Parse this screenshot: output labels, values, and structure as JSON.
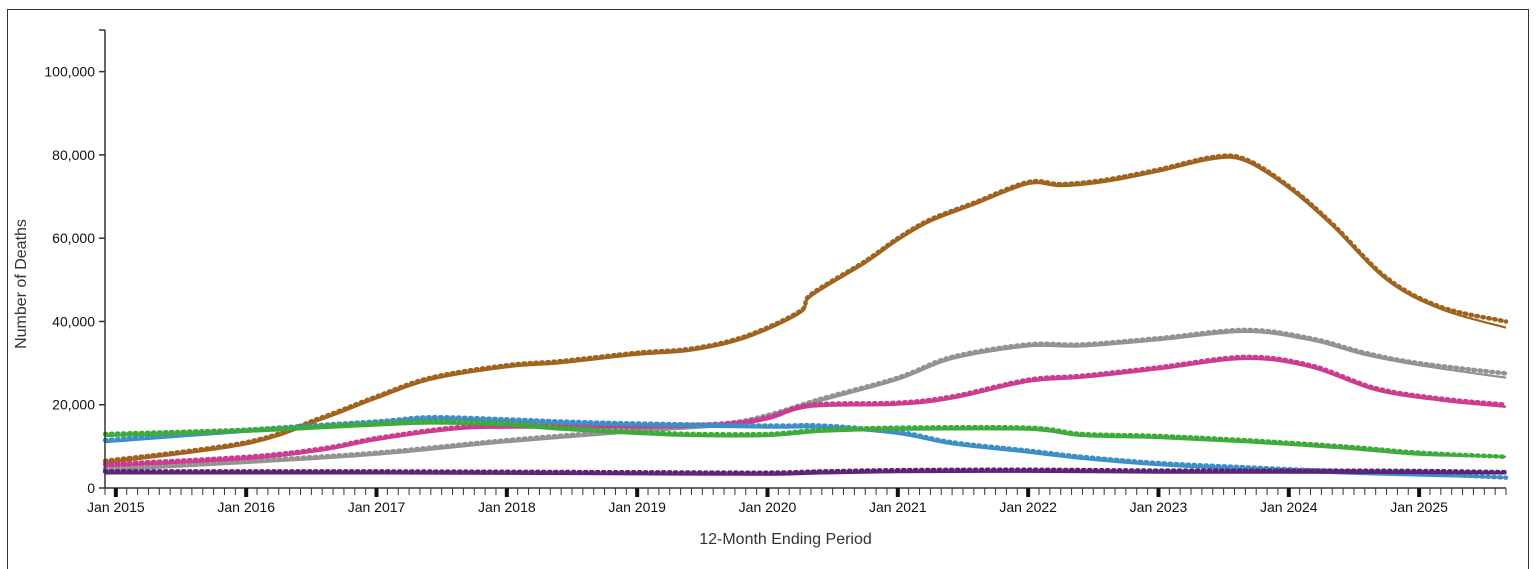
{
  "chart_data": {
    "type": "line",
    "xlabel": "12-Month Ending Period",
    "ylabel": "Number of Deaths",
    "ylim": [
      0,
      110000
    ],
    "yticks": [
      0,
      20000,
      40000,
      60000,
      80000,
      100000
    ],
    "ytick_labels": [
      "0",
      "20,000",
      "40,000",
      "60,000",
      "80,000",
      "100,000"
    ],
    "x_start": "2014-12",
    "x_end": "2025-09",
    "xtick_labels": [
      "Jan 2015",
      "Jan 2016",
      "Jan 2017",
      "Jan 2018",
      "Jan 2019",
      "Jan 2020",
      "Jan 2021",
      "Jan 2022",
      "Jan 2023",
      "Jan 2024",
      "Jan 2025"
    ],
    "grid": false,
    "legend": "none",
    "series": [
      {
        "color": "#a0631e",
        "style": "solid-with-dotted-overlay",
        "points": [
          [
            "2014-12",
            6000
          ],
          [
            "2016-01",
            10500
          ],
          [
            "2016-08",
            16500
          ],
          [
            "2017-01",
            21500
          ],
          [
            "2017-06",
            26000
          ],
          [
            "2018-01",
            29000
          ],
          [
            "2018-06",
            30000
          ],
          [
            "2019-01",
            32000
          ],
          [
            "2019-06",
            33000
          ],
          [
            "2019-11",
            36000
          ],
          [
            "2020-04",
            42000
          ],
          [
            "2020-05",
            46000
          ],
          [
            "2020-10",
            54000
          ],
          [
            "2021-01",
            59500
          ],
          [
            "2021-04",
            64000
          ],
          [
            "2021-08",
            68000
          ],
          [
            "2022-01",
            73000
          ],
          [
            "2022-04",
            72500
          ],
          [
            "2022-08",
            73500
          ],
          [
            "2023-01",
            76000
          ],
          [
            "2023-06",
            79000
          ],
          [
            "2023-09",
            78500
          ],
          [
            "2024-01",
            72000
          ],
          [
            "2024-05",
            63000
          ],
          [
            "2024-10",
            50000
          ],
          [
            "2025-03",
            43000
          ],
          [
            "2025-09",
            38500
          ]
        ],
        "dotted_end": 40000
      },
      {
        "color": "#929292",
        "style": "solid-with-dotted-overlay",
        "points": [
          [
            "2014-12",
            4200
          ],
          [
            "2016-01",
            6000
          ],
          [
            "2017-01",
            8000
          ],
          [
            "2018-01",
            11000
          ],
          [
            "2019-01",
            13500
          ],
          [
            "2019-09",
            15000
          ],
          [
            "2020-01",
            17000
          ],
          [
            "2020-06",
            21000
          ],
          [
            "2021-01",
            26000
          ],
          [
            "2021-06",
            31000
          ],
          [
            "2022-01",
            34000
          ],
          [
            "2022-06",
            34000
          ],
          [
            "2023-01",
            35500
          ],
          [
            "2023-09",
            37500
          ],
          [
            "2024-03",
            35500
          ],
          [
            "2024-08",
            32000
          ],
          [
            "2025-01",
            29500
          ],
          [
            "2025-09",
            26500
          ]
        ],
        "dotted_end": 27500
      },
      {
        "color": "#cc3a91",
        "style": "solid-with-dotted-overlay",
        "points": [
          [
            "2014-12",
            5200
          ],
          [
            "2016-01",
            7000
          ],
          [
            "2016-08",
            9000
          ],
          [
            "2017-01",
            11500
          ],
          [
            "2017-08",
            14000
          ],
          [
            "2018-01",
            14500
          ],
          [
            "2019-01",
            14500
          ],
          [
            "2019-09",
            15000
          ],
          [
            "2020-01",
            16500
          ],
          [
            "2020-05",
            19500
          ],
          [
            "2021-01",
            20000
          ],
          [
            "2021-06",
            21500
          ],
          [
            "2022-01",
            25500
          ],
          [
            "2022-06",
            26500
          ],
          [
            "2023-01",
            28500
          ],
          [
            "2023-09",
            31000
          ],
          [
            "2024-03",
            29000
          ],
          [
            "2024-09",
            23500
          ],
          [
            "2025-03",
            21000
          ],
          [
            "2025-09",
            19500
          ]
        ],
        "dotted_end": 20000
      },
      {
        "color": "#3d8ec7",
        "style": "solid-with-dotted-overlay",
        "points": [
          [
            "2014-12",
            11000
          ],
          [
            "2016-01",
            13500
          ],
          [
            "2017-01",
            15500
          ],
          [
            "2017-06",
            16500
          ],
          [
            "2018-01",
            16000
          ],
          [
            "2018-06",
            15500
          ],
          [
            "2019-01",
            15000
          ],
          [
            "2020-01",
            14500
          ],
          [
            "2020-06",
            14500
          ],
          [
            "2021-01",
            13000
          ],
          [
            "2021-06",
            10500
          ],
          [
            "2022-01",
            8500
          ],
          [
            "2022-06",
            7000
          ],
          [
            "2023-01",
            5500
          ],
          [
            "2023-09",
            4500
          ],
          [
            "2024-06",
            3500
          ],
          [
            "2025-01",
            3000
          ],
          [
            "2025-09",
            2500
          ]
        ],
        "dotted_end": 2500
      },
      {
        "color": "#3daa3a",
        "style": "solid-with-dotted-overlay",
        "points": [
          [
            "2014-12",
            12500
          ],
          [
            "2016-01",
            13500
          ],
          [
            "2017-01",
            15000
          ],
          [
            "2017-06",
            15500
          ],
          [
            "2018-01",
            15000
          ],
          [
            "2018-06",
            14000
          ],
          [
            "2019-01",
            13000
          ],
          [
            "2019-06",
            12500
          ],
          [
            "2020-01",
            12500
          ],
          [
            "2020-06",
            13500
          ],
          [
            "2021-01",
            14000
          ],
          [
            "2022-01",
            14000
          ],
          [
            "2022-06",
            12500
          ],
          [
            "2023-01",
            12000
          ],
          [
            "2023-09",
            11000
          ],
          [
            "2024-06",
            9500
          ],
          [
            "2025-01",
            8000
          ],
          [
            "2025-09",
            7500
          ]
        ],
        "dotted_end": 7500
      },
      {
        "color": "#5c2277",
        "style": "solid-with-dotted-overlay",
        "points": [
          [
            "2014-12",
            3500
          ],
          [
            "2016-01",
            3500
          ],
          [
            "2017-01",
            3500
          ],
          [
            "2018-01",
            3400
          ],
          [
            "2019-01",
            3300
          ],
          [
            "2020-01",
            3200
          ],
          [
            "2020-06",
            3500
          ],
          [
            "2021-01",
            3800
          ],
          [
            "2022-01",
            3900
          ],
          [
            "2023-01",
            3700
          ],
          [
            "2024-01",
            3700
          ],
          [
            "2025-01",
            3600
          ],
          [
            "2025-09",
            3500
          ]
        ],
        "dotted_end": 3800
      }
    ]
  }
}
